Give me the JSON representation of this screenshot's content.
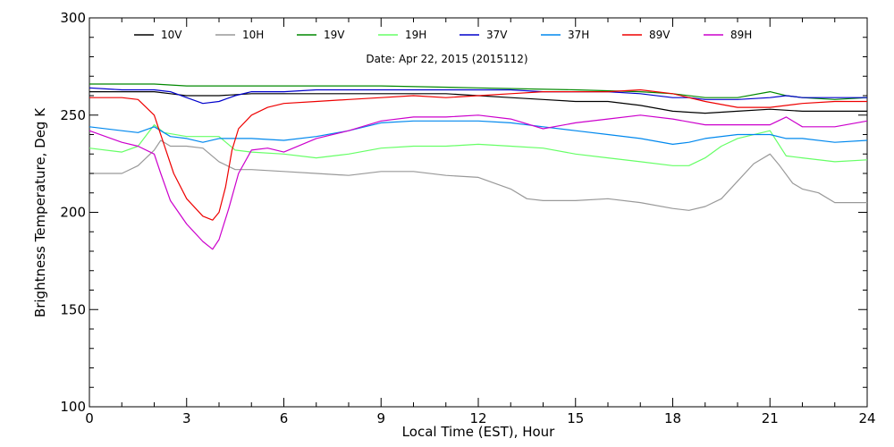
{
  "chart_data": {
    "type": "line",
    "subtitle": "Date: Apr 22, 2015 (2015112)",
    "xlabel": "Local Time (EST), Hour",
    "ylabel": "Brightness Temperature, Deg K",
    "xlim": [
      0,
      24
    ],
    "ylim": [
      100,
      300
    ],
    "xticks": [
      0,
      3,
      6,
      9,
      12,
      15,
      18,
      21,
      24
    ],
    "yticks": [
      100,
      150,
      200,
      250,
      300
    ],
    "grid": false,
    "legend_position": "top",
    "series": [
      {
        "name": "10V",
        "color": "#000000",
        "points": [
          [
            0,
            262
          ],
          [
            1,
            262
          ],
          [
            2,
            262
          ],
          [
            2.5,
            261
          ],
          [
            3,
            260
          ],
          [
            3.5,
            260
          ],
          [
            4,
            260
          ],
          [
            5,
            261
          ],
          [
            6,
            261
          ],
          [
            7,
            261
          ],
          [
            8,
            261
          ],
          [
            9,
            261
          ],
          [
            10,
            261
          ],
          [
            11,
            261
          ],
          [
            12,
            260
          ],
          [
            13,
            259
          ],
          [
            14,
            258
          ],
          [
            15,
            257
          ],
          [
            16,
            257
          ],
          [
            17,
            255
          ],
          [
            18,
            252
          ],
          [
            19,
            251
          ],
          [
            20,
            252
          ],
          [
            21,
            253
          ],
          [
            22,
            252
          ],
          [
            23,
            252
          ],
          [
            24,
            252
          ]
        ]
      },
      {
        "name": "10H",
        "color": "#999999",
        "points": [
          [
            0,
            220
          ],
          [
            0.5,
            220
          ],
          [
            1,
            220
          ],
          [
            1.5,
            224
          ],
          [
            2,
            232
          ],
          [
            2.2,
            237
          ],
          [
            2.5,
            234
          ],
          [
            3,
            234
          ],
          [
            3.5,
            233
          ],
          [
            4,
            226
          ],
          [
            4.5,
            222
          ],
          [
            5,
            222
          ],
          [
            6,
            221
          ],
          [
            7,
            220
          ],
          [
            8,
            219
          ],
          [
            9,
            221
          ],
          [
            10,
            221
          ],
          [
            11,
            219
          ],
          [
            12,
            218
          ],
          [
            12.5,
            215
          ],
          [
            13,
            212
          ],
          [
            13.5,
            207
          ],
          [
            14,
            206
          ],
          [
            15,
            206
          ],
          [
            16,
            207
          ],
          [
            17,
            205
          ],
          [
            18,
            202
          ],
          [
            18.5,
            201
          ],
          [
            19,
            203
          ],
          [
            19.5,
            207
          ],
          [
            20,
            216
          ],
          [
            20.5,
            225
          ],
          [
            21,
            230
          ],
          [
            21.3,
            224
          ],
          [
            21.7,
            215
          ],
          [
            22,
            212
          ],
          [
            22.5,
            210
          ],
          [
            23,
            205
          ],
          [
            23.5,
            205
          ],
          [
            24,
            205
          ]
        ]
      },
      {
        "name": "19V",
        "color": "#008800",
        "points": [
          [
            0,
            266
          ],
          [
            2,
            266
          ],
          [
            3,
            265
          ],
          [
            4,
            265
          ],
          [
            6,
            265
          ],
          [
            9,
            265
          ],
          [
            12,
            264
          ],
          [
            15,
            263
          ],
          [
            17,
            262
          ],
          [
            18,
            261
          ],
          [
            19,
            259
          ],
          [
            20,
            259
          ],
          [
            21,
            262
          ],
          [
            21.5,
            260
          ],
          [
            22,
            259
          ],
          [
            23,
            258
          ],
          [
            24,
            259
          ]
        ]
      },
      {
        "name": "19H",
        "color": "#66ff66",
        "points": [
          [
            0,
            233
          ],
          [
            1,
            231
          ],
          [
            1.5,
            234
          ],
          [
            2,
            245
          ],
          [
            2.3,
            241
          ],
          [
            3,
            239
          ],
          [
            4,
            239
          ],
          [
            4.5,
            232
          ],
          [
            5,
            231
          ],
          [
            6,
            230
          ],
          [
            7,
            228
          ],
          [
            8,
            230
          ],
          [
            9,
            233
          ],
          [
            10,
            234
          ],
          [
            11,
            234
          ],
          [
            12,
            235
          ],
          [
            13,
            234
          ],
          [
            14,
            233
          ],
          [
            15,
            230
          ],
          [
            16,
            228
          ],
          [
            17,
            226
          ],
          [
            18,
            224
          ],
          [
            18.5,
            224
          ],
          [
            19,
            228
          ],
          [
            19.5,
            234
          ],
          [
            20,
            238
          ],
          [
            21,
            242
          ],
          [
            21.5,
            229
          ],
          [
            22,
            228
          ],
          [
            23,
            226
          ],
          [
            24,
            227
          ]
        ]
      },
      {
        "name": "37V",
        "color": "#0000cc",
        "points": [
          [
            0,
            264
          ],
          [
            1,
            263
          ],
          [
            2,
            263
          ],
          [
            2.5,
            262
          ],
          [
            3,
            259
          ],
          [
            3.5,
            256
          ],
          [
            4,
            257
          ],
          [
            4.5,
            260
          ],
          [
            5,
            262
          ],
          [
            6,
            262
          ],
          [
            7,
            263
          ],
          [
            8,
            263
          ],
          [
            9,
            263
          ],
          [
            10,
            263
          ],
          [
            11,
            263
          ],
          [
            12,
            263
          ],
          [
            13,
            263
          ],
          [
            14,
            262
          ],
          [
            15,
            262
          ],
          [
            16,
            262
          ],
          [
            17,
            261
          ],
          [
            18,
            259
          ],
          [
            18.5,
            259
          ],
          [
            19,
            258
          ],
          [
            20,
            258
          ],
          [
            21,
            259
          ],
          [
            21.5,
            260
          ],
          [
            22,
            259
          ],
          [
            23,
            259
          ],
          [
            24,
            259
          ]
        ]
      },
      {
        "name": "37H",
        "color": "#0088ee",
        "points": [
          [
            0,
            244
          ],
          [
            1,
            242
          ],
          [
            1.5,
            241
          ],
          [
            2,
            244
          ],
          [
            2.5,
            239
          ],
          [
            3,
            238
          ],
          [
            3.5,
            236
          ],
          [
            4,
            238
          ],
          [
            5,
            238
          ],
          [
            6,
            237
          ],
          [
            7,
            239
          ],
          [
            8,
            242
          ],
          [
            9,
            246
          ],
          [
            10,
            247
          ],
          [
            11,
            247
          ],
          [
            12,
            247
          ],
          [
            13,
            246
          ],
          [
            14,
            244
          ],
          [
            15,
            242
          ],
          [
            16,
            240
          ],
          [
            17,
            238
          ],
          [
            18,
            235
          ],
          [
            18.5,
            236
          ],
          [
            19,
            238
          ],
          [
            20,
            240
          ],
          [
            21,
            240
          ],
          [
            21.5,
            238
          ],
          [
            22,
            238
          ],
          [
            23,
            236
          ],
          [
            24,
            237
          ]
        ]
      },
      {
        "name": "89V",
        "color": "#ee0000",
        "points": [
          [
            0,
            259
          ],
          [
            1,
            259
          ],
          [
            1.5,
            258
          ],
          [
            2,
            250
          ],
          [
            2.3,
            235
          ],
          [
            2.6,
            220
          ],
          [
            3,
            207
          ],
          [
            3.5,
            198
          ],
          [
            3.8,
            196
          ],
          [
            4,
            200
          ],
          [
            4.2,
            213
          ],
          [
            4.4,
            232
          ],
          [
            4.6,
            243
          ],
          [
            5,
            250
          ],
          [
            5.5,
            254
          ],
          [
            6,
            256
          ],
          [
            7,
            257
          ],
          [
            8,
            258
          ],
          [
            9,
            259
          ],
          [
            10,
            260
          ],
          [
            11,
            259
          ],
          [
            12,
            260
          ],
          [
            13,
            261
          ],
          [
            14,
            262
          ],
          [
            15,
            262
          ],
          [
            16,
            262
          ],
          [
            17,
            263
          ],
          [
            18,
            261
          ],
          [
            19,
            257
          ],
          [
            20,
            254
          ],
          [
            21,
            254
          ],
          [
            22,
            256
          ],
          [
            23,
            257
          ],
          [
            24,
            257
          ]
        ]
      },
      {
        "name": "89H",
        "color": "#cc00cc",
        "points": [
          [
            0,
            242
          ],
          [
            1,
            236
          ],
          [
            1.5,
            234
          ],
          [
            2,
            230
          ],
          [
            2.2,
            220
          ],
          [
            2.5,
            206
          ],
          [
            3,
            194
          ],
          [
            3.5,
            185
          ],
          [
            3.8,
            181
          ],
          [
            4,
            186
          ],
          [
            4.3,
            202
          ],
          [
            4.6,
            220
          ],
          [
            5,
            232
          ],
          [
            5.5,
            233
          ],
          [
            6,
            231
          ],
          [
            7,
            238
          ],
          [
            8,
            242
          ],
          [
            9,
            247
          ],
          [
            10,
            249
          ],
          [
            11,
            249
          ],
          [
            12,
            250
          ],
          [
            13,
            248
          ],
          [
            14,
            243
          ],
          [
            15,
            246
          ],
          [
            16,
            248
          ],
          [
            17,
            250
          ],
          [
            18,
            248
          ],
          [
            19,
            245
          ],
          [
            20,
            245
          ],
          [
            21,
            245
          ],
          [
            21.5,
            249
          ],
          [
            22,
            244
          ],
          [
            23,
            244
          ],
          [
            24,
            247
          ]
        ]
      }
    ]
  }
}
